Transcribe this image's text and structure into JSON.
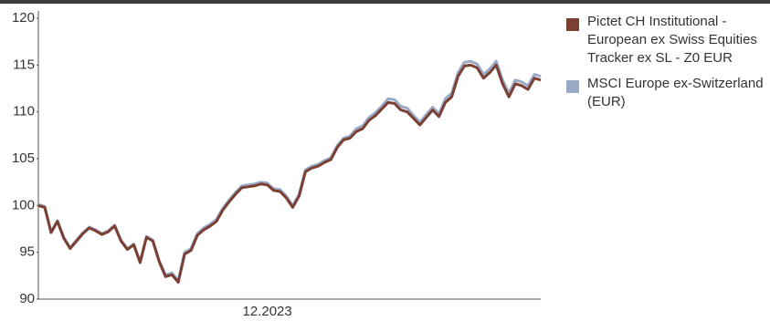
{
  "chart_data": {
    "type": "line",
    "categories": [
      null,
      null,
      null,
      null,
      null,
      null,
      null,
      null,
      null,
      null,
      null,
      null,
      null,
      null,
      null,
      null,
      null,
      null,
      null,
      null,
      null,
      null,
      null,
      null,
      null,
      null,
      null,
      null,
      null,
      null,
      null,
      null,
      null,
      null,
      null,
      null,
      "12.2023",
      null,
      null,
      null,
      null,
      null,
      null,
      null,
      null,
      null,
      null,
      null,
      null,
      null,
      null,
      null,
      null,
      null,
      null,
      null,
      null,
      null,
      null,
      null,
      null,
      null,
      null,
      null,
      null,
      null,
      null,
      null,
      null,
      null,
      null,
      null,
      null,
      null,
      null,
      null,
      null,
      null,
      null,
      null
    ],
    "series": [
      {
        "name": "MSCI Europe ex-Switzerland (EUR)",
        "color": "#9aaac6",
        "values": [
          100.1,
          99.9,
          97.2,
          98.4,
          96.6,
          95.5,
          96.3,
          97.1,
          97.7,
          97.4,
          97.0,
          97.3,
          97.9,
          96.3,
          95.4,
          95.9,
          94.0,
          96.7,
          96.3,
          94.1,
          92.6,
          92.8,
          92.0,
          95.0,
          95.4,
          97.0,
          97.6,
          98.0,
          98.5,
          99.7,
          100.6,
          101.4,
          102.1,
          102.2,
          102.3,
          102.5,
          102.4,
          101.8,
          101.7,
          101.0,
          100.0,
          101.2,
          103.8,
          104.2,
          104.4,
          104.8,
          105.1,
          106.4,
          107.2,
          107.4,
          108.2,
          108.5,
          109.4,
          109.9,
          110.6,
          111.4,
          111.3,
          110.6,
          110.4,
          109.6,
          108.9,
          109.7,
          110.5,
          109.8,
          111.4,
          112.0,
          114.2,
          115.3,
          115.4,
          115.1,
          114.0,
          114.6,
          115.4,
          113.4,
          112.0,
          113.4,
          113.2,
          112.8,
          114.0,
          113.8
        ]
      },
      {
        "name": "Pictet CH Institutional - European ex Swiss Equities Tracker ex SL - Z0 EUR",
        "color": "#7b3f34",
        "values": [
          100.0,
          99.8,
          97.1,
          98.3,
          96.5,
          95.4,
          96.2,
          97.0,
          97.6,
          97.3,
          96.9,
          97.2,
          97.8,
          96.2,
          95.3,
          95.8,
          93.9,
          96.6,
          96.2,
          94.0,
          92.4,
          92.6,
          91.8,
          94.8,
          95.2,
          96.8,
          97.4,
          97.8,
          98.3,
          99.5,
          100.4,
          101.2,
          101.9,
          102.0,
          102.1,
          102.3,
          102.2,
          101.6,
          101.5,
          100.8,
          99.8,
          101.0,
          103.6,
          104.0,
          104.2,
          104.6,
          104.9,
          106.2,
          107.0,
          107.2,
          107.9,
          108.2,
          109.1,
          109.6,
          110.3,
          111.0,
          110.9,
          110.2,
          110.0,
          109.3,
          108.6,
          109.4,
          110.2,
          109.5,
          111.0,
          111.6,
          113.8,
          114.9,
          115.0,
          114.7,
          113.6,
          114.2,
          115.0,
          113.0,
          111.6,
          113.0,
          112.8,
          112.4,
          113.6,
          113.4
        ]
      }
    ],
    "ylim": [
      90,
      120
    ],
    "yticks": [
      90,
      95,
      100,
      105,
      110,
      115,
      120
    ],
    "grid": false
  }
}
